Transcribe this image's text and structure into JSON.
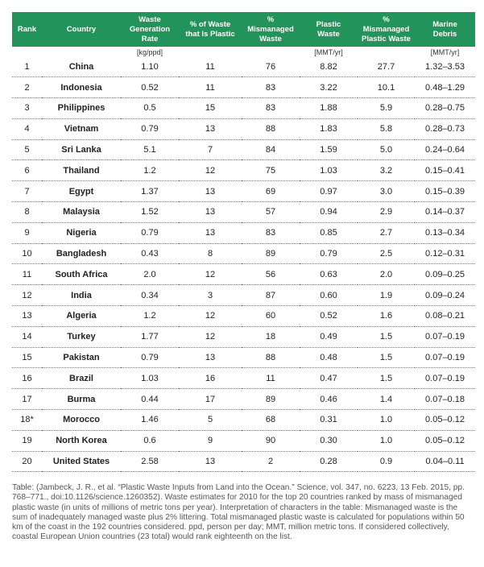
{
  "table": {
    "headers": [
      "Rank",
      "Country",
      "Waste\nGeneration Rate",
      "% of Waste\nthat Is Plastic",
      "% Mismanaged\nWaste",
      "Plastic\nWaste",
      "% Mismanaged\nPlastic Waste",
      "Marine\nDebris"
    ],
    "units": [
      "",
      "",
      "[kg/ppd]",
      "",
      "",
      "[MMT/yr]",
      "",
      "[MMT/yr]"
    ],
    "rows": [
      [
        "1",
        "China",
        "1.10",
        "11",
        "76",
        "8.82",
        "27.7",
        "1.32–3.53"
      ],
      [
        "2",
        "Indonesia",
        "0.52",
        "11",
        "83",
        "3.22",
        "10.1",
        "0.48–1.29"
      ],
      [
        "3",
        "Philippines",
        "0.5",
        "15",
        "83",
        "1.88",
        "5.9",
        "0.28–0.75"
      ],
      [
        "4",
        "Vietnam",
        "0.79",
        "13",
        "88",
        "1.83",
        "5.8",
        "0.28–0.73"
      ],
      [
        "5",
        "Sri Lanka",
        "5.1",
        "7",
        "84",
        "1.59",
        "5.0",
        "0.24–0.64"
      ],
      [
        "6",
        "Thailand",
        "1.2",
        "12",
        "75",
        "1.03",
        "3.2",
        "0.15–0.41"
      ],
      [
        "7",
        "Egypt",
        "1.37",
        "13",
        "69",
        "0.97",
        "3.0",
        "0.15–0.39"
      ],
      [
        "8",
        "Malaysia",
        "1.52",
        "13",
        "57",
        "0.94",
        "2.9",
        "0.14–0.37"
      ],
      [
        "9",
        "Nigeria",
        "0.79",
        "13",
        "83",
        "0.85",
        "2.7",
        "0.13–0.34"
      ],
      [
        "10",
        "Bangladesh",
        "0.43",
        "8",
        "89",
        "0.79",
        "2.5",
        "0.12–0.31"
      ],
      [
        "11",
        "South Africa",
        "2.0",
        "12",
        "56",
        "0.63",
        "2.0",
        "0.09–0.25"
      ],
      [
        "12",
        "India",
        "0.34",
        "3",
        "87",
        "0.60",
        "1.9",
        "0.09–0.24"
      ],
      [
        "13",
        "Algeria",
        "1.2",
        "12",
        "60",
        "0.52",
        "1.6",
        "0.08–0.21"
      ],
      [
        "14",
        "Turkey",
        "1.77",
        "12",
        "18",
        "0.49",
        "1.5",
        "0.07–0.19"
      ],
      [
        "15",
        "Pakistan",
        "0.79",
        "13",
        "88",
        "0.48",
        "1.5",
        "0.07–0.19"
      ],
      [
        "16",
        "Brazil",
        "1.03",
        "16",
        "11",
        "0.47",
        "1.5",
        "0.07–0.19"
      ],
      [
        "17",
        "Burma",
        "0.44",
        "17",
        "89",
        "0.46",
        "1.4",
        "0.07–0.18"
      ],
      [
        "18*",
        "Morocco",
        "1.46",
        "5",
        "68",
        "0.31",
        "1.0",
        "0.05–0.12"
      ],
      [
        "19",
        "North Korea",
        "0.6",
        "9",
        "90",
        "0.30",
        "1.0",
        "0.05–0.12"
      ],
      [
        "20",
        "United States",
        "2.58",
        "13",
        "2",
        "0.28",
        "0.9",
        "0.04–0.11"
      ]
    ]
  },
  "footnote": "Table: (Jambeck, J. R., et al. “Plastic Waste Inputs from Land into the Ocean.” Science, vol. 347, no. 6223, 13 Feb. 2015, pp. 768–771., doi:10.1126/science.1260352). Waste estimates for 2010 for the top 20 countries ranked by mass of mismanaged plastic waste (in units of millions of metric tons per year).  Interpretation of characters in the table: Mismanaged waste is the sum of inadequately managed waste plus 2% littering. Total mismanaged plastic waste is calculated for populations within 50 km of the coast in the 192 countries considered. ppd, person per day; MMT, million metric tons. If considered collectively, coastal European Union countries (23 total) would rank eighteenth on the list."
}
